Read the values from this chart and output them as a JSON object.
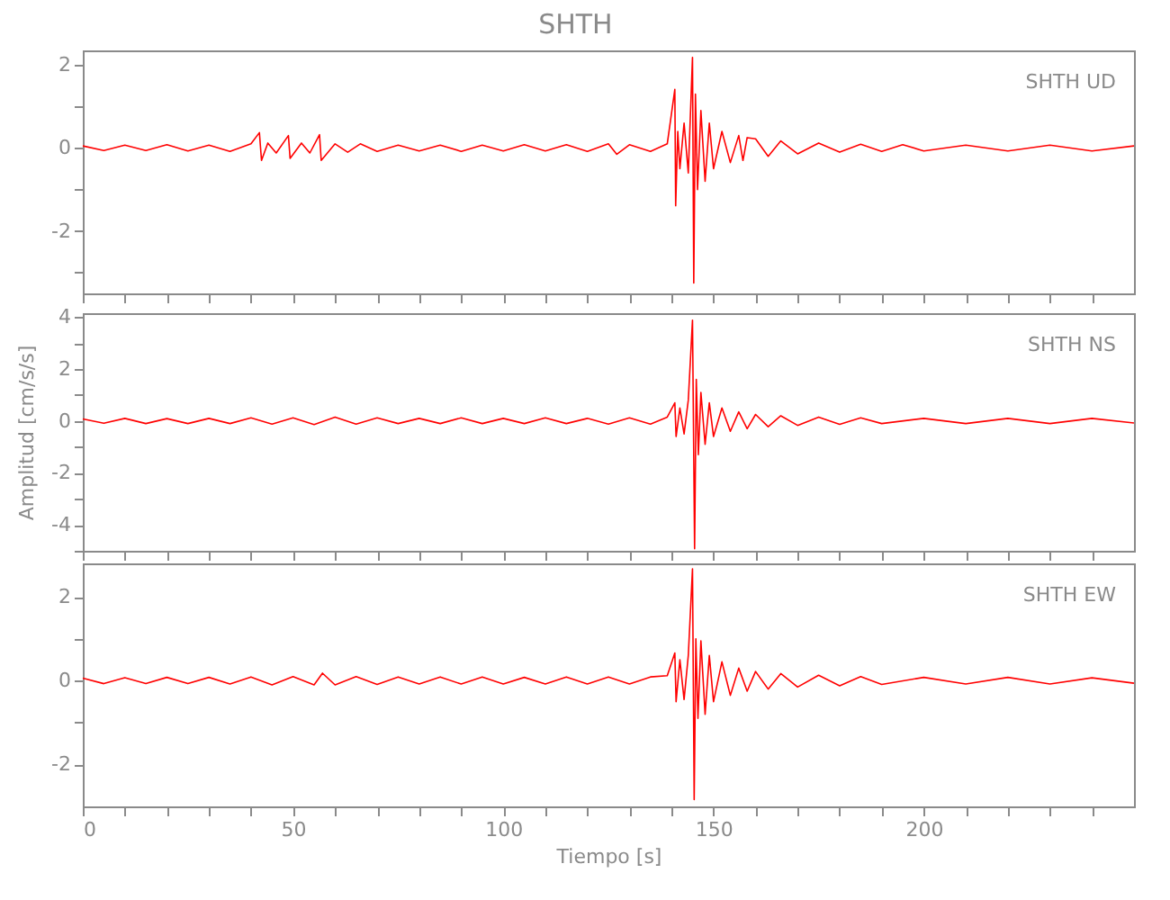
{
  "chart_data": [
    {
      "type": "line",
      "title": "SHTH",
      "annotations": [
        "SHTH   UD"
      ],
      "xlim": [
        0,
        250
      ],
      "xticks": [
        0,
        {
          "value": 10,
          "label": null
        },
        {
          "value": 20,
          "label": null
        },
        {
          "value": 30,
          "label": null
        },
        {
          "value": 40,
          "label": null
        },
        50,
        {
          "value": 60,
          "label": null
        },
        {
          "value": 70,
          "label": null
        },
        {
          "value": 80,
          "label": null
        },
        {
          "value": 90,
          "label": null
        },
        100,
        {
          "value": 110,
          "label": null
        },
        {
          "value": 120,
          "label": null
        },
        {
          "value": 130,
          "label": null
        },
        {
          "value": 140,
          "label": null
        },
        150,
        {
          "value": 160,
          "label": null
        },
        {
          "value": 170,
          "label": null
        },
        {
          "value": 180,
          "label": null
        },
        {
          "value": 190,
          "label": null
        },
        200,
        {
          "value": 210,
          "label": null
        },
        {
          "value": 220,
          "label": null
        },
        {
          "value": 230,
          "label": null
        },
        {
          "value": 240,
          "label": null
        }
      ],
      "ylim": [
        -3.5,
        2.35
      ],
      "yticks": [
        {
          "value": -3,
          "label": null
        },
        -2,
        {
          "value": -1,
          "label": null
        },
        0,
        {
          "value": 1,
          "label": null
        },
        2
      ],
      "tick_labels": "y",
      "grid": false,
      "series": [
        {
          "color": "#ff0000",
          "x": [
            0,
            5,
            10,
            15,
            20,
            25,
            30,
            35,
            40,
            42,
            42.5,
            44,
            46,
            48.9,
            49.3,
            52,
            54,
            56.3,
            56.7,
            60,
            63,
            66,
            70,
            75,
            80,
            85,
            90,
            95,
            100,
            105,
            110,
            115,
            120,
            125,
            127,
            130,
            135,
            139,
            140.8,
            141,
            141.5,
            142,
            143,
            144,
            145,
            145.3,
            145.7,
            146.2,
            147,
            148,
            149,
            150,
            152,
            154,
            156,
            157,
            158,
            160,
            163,
            166,
            170,
            175,
            180,
            185,
            190,
            195,
            200,
            210,
            220,
            230,
            240,
            250
          ],
          "values": [
            0.05,
            -0.06,
            0.07,
            -0.06,
            0.08,
            -0.07,
            0.07,
            -0.08,
            0.1,
            0.37,
            -0.3,
            0.12,
            -0.12,
            0.3,
            -0.25,
            0.12,
            -0.12,
            0.32,
            -0.3,
            0.1,
            -0.1,
            0.1,
            -0.08,
            0.07,
            -0.07,
            0.07,
            -0.08,
            0.07,
            -0.07,
            0.08,
            -0.07,
            0.08,
            -0.08,
            0.1,
            -0.15,
            0.08,
            -0.08,
            0.1,
            1.41,
            -1.39,
            0.4,
            -0.5,
            0.6,
            -0.6,
            2.18,
            -3.25,
            1.3,
            -1.0,
            0.9,
            -0.8,
            0.6,
            -0.5,
            0.4,
            -0.35,
            0.3,
            -0.3,
            0.25,
            0.22,
            -0.2,
            0.17,
            -0.14,
            0.12,
            -0.1,
            0.09,
            -0.08,
            0.08,
            -0.07,
            0.07,
            -0.07,
            0.07,
            -0.07,
            0.05
          ]
        }
      ]
    },
    {
      "type": "line",
      "ylabel": "Amplitud  [cm/s/s]",
      "annotations": [
        "SHTH   NS"
      ],
      "xlim": [
        0,
        250
      ],
      "xticks": [
        0,
        {
          "value": 10,
          "label": null
        },
        {
          "value": 20,
          "label": null
        },
        {
          "value": 30,
          "label": null
        },
        {
          "value": 40,
          "label": null
        },
        50,
        {
          "value": 60,
          "label": null
        },
        {
          "value": 70,
          "label": null
        },
        {
          "value": 80,
          "label": null
        },
        {
          "value": 90,
          "label": null
        },
        100,
        {
          "value": 110,
          "label": null
        },
        {
          "value": 120,
          "label": null
        },
        {
          "value": 130,
          "label": null
        },
        {
          "value": 140,
          "label": null
        },
        150,
        {
          "value": 160,
          "label": null
        },
        {
          "value": 170,
          "label": null
        },
        {
          "value": 180,
          "label": null
        },
        {
          "value": 190,
          "label": null
        },
        200,
        {
          "value": 210,
          "label": null
        },
        {
          "value": 220,
          "label": null
        },
        {
          "value": 230,
          "label": null
        },
        {
          "value": 240,
          "label": null
        }
      ],
      "ylim": [
        -5,
        4.15
      ],
      "yticks": [
        {
          "value": -5,
          "label": null
        },
        -4,
        {
          "value": -3,
          "label": null
        },
        -2,
        {
          "value": -1,
          "label": null
        },
        0,
        {
          "value": 1,
          "label": null
        },
        2,
        {
          "value": 3,
          "label": null
        },
        4
      ],
      "tick_labels": "y",
      "grid": false,
      "series": [
        {
          "color": "#ff0000",
          "x": [
            0,
            5,
            10,
            15,
            20,
            25,
            30,
            35,
            40,
            45,
            50,
            55,
            60,
            65,
            70,
            75,
            80,
            85,
            90,
            95,
            100,
            105,
            110,
            115,
            120,
            125,
            130,
            135,
            139,
            140.8,
            141.1,
            142,
            143,
            144,
            145,
            145.5,
            145.9,
            146.4,
            147,
            148,
            149,
            150,
            152,
            154,
            156,
            158,
            160,
            163,
            166,
            170,
            175,
            180,
            185,
            190,
            200,
            210,
            220,
            230,
            240,
            250
          ],
          "values": [
            0.08,
            -0.09,
            0.1,
            -0.1,
            0.09,
            -0.1,
            0.1,
            -0.1,
            0.12,
            -0.12,
            0.12,
            -0.14,
            0.15,
            -0.12,
            0.12,
            -0.1,
            0.1,
            -0.1,
            0.12,
            -0.1,
            0.1,
            -0.1,
            0.12,
            -0.1,
            0.1,
            -0.12,
            0.12,
            -0.12,
            0.15,
            0.7,
            -0.6,
            0.5,
            -0.5,
            0.8,
            3.88,
            -4.92,
            1.6,
            -1.3,
            1.1,
            -0.9,
            0.7,
            -0.6,
            0.5,
            -0.4,
            0.35,
            -0.3,
            0.25,
            -0.22,
            0.2,
            -0.17,
            0.15,
            -0.13,
            0.12,
            -0.1,
            0.1,
            -0.1,
            0.1,
            -0.1,
            0.1,
            -0.08
          ]
        }
      ]
    },
    {
      "type": "line",
      "xlabel": "Tiempo  [s]",
      "annotations": [
        "SHTH   EW"
      ],
      "xlim": [
        0,
        250
      ],
      "xticks": [
        0,
        {
          "value": 10,
          "label": null
        },
        {
          "value": 20,
          "label": null
        },
        {
          "value": 30,
          "label": null
        },
        {
          "value": 40,
          "label": null
        },
        50,
        {
          "value": 60,
          "label": null
        },
        {
          "value": 70,
          "label": null
        },
        {
          "value": 80,
          "label": null
        },
        {
          "value": 90,
          "label": null
        },
        100,
        {
          "value": 110,
          "label": null
        },
        {
          "value": 120,
          "label": null
        },
        {
          "value": 130,
          "label": null
        },
        {
          "value": 140,
          "label": null
        },
        150,
        {
          "value": 160,
          "label": null
        },
        {
          "value": 170,
          "label": null
        },
        {
          "value": 180,
          "label": null
        },
        {
          "value": 190,
          "label": null
        },
        200,
        {
          "value": 210,
          "label": null
        },
        {
          "value": 220,
          "label": null
        },
        {
          "value": 230,
          "label": null
        },
        {
          "value": 240,
          "label": null
        }
      ],
      "ylim": [
        -3,
        2.8
      ],
      "yticks": [
        -2,
        {
          "value": -1,
          "label": null
        },
        0,
        {
          "value": 1,
          "label": null
        },
        2
      ],
      "grid": false,
      "series": [
        {
          "color": "#ff0000",
          "x": [
            0,
            5,
            10,
            15,
            20,
            25,
            30,
            35,
            40,
            45,
            50,
            55,
            57,
            60,
            65,
            70,
            75,
            80,
            85,
            90,
            95,
            100,
            105,
            110,
            115,
            120,
            125,
            130,
            135,
            139,
            140.8,
            141.1,
            142,
            143,
            144,
            145,
            145.4,
            145.8,
            146.3,
            147,
            148,
            149,
            150,
            152,
            154,
            156,
            158,
            160,
            163,
            166,
            170,
            175,
            180,
            185,
            190,
            200,
            210,
            220,
            230,
            240,
            250
          ],
          "values": [
            0.06,
            -0.07,
            0.07,
            -0.07,
            0.08,
            -0.07,
            0.08,
            -0.08,
            0.09,
            -0.1,
            0.1,
            -0.1,
            0.18,
            -0.1,
            0.1,
            -0.09,
            0.09,
            -0.08,
            0.09,
            -0.08,
            0.09,
            -0.08,
            0.08,
            -0.08,
            0.09,
            -0.08,
            0.09,
            -0.08,
            0.09,
            0.12,
            0.66,
            -0.5,
            0.5,
            -0.45,
            0.6,
            2.67,
            -2.84,
            1.0,
            -0.9,
            0.95,
            -0.8,
            0.6,
            -0.5,
            0.45,
            -0.35,
            0.3,
            -0.25,
            0.22,
            -0.2,
            0.17,
            -0.15,
            0.13,
            -0.12,
            0.1,
            -0.09,
            0.08,
            -0.08,
            0.08,
            -0.08,
            0.07,
            -0.06
          ]
        }
      ]
    }
  ]
}
